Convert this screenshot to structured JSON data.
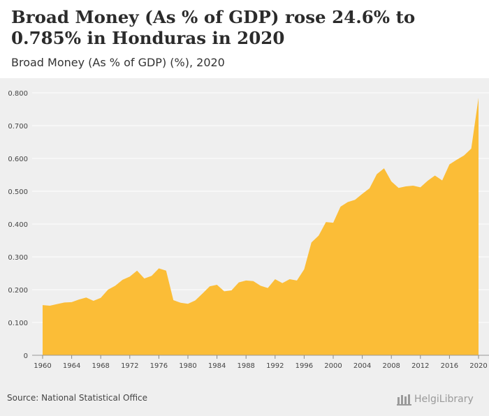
{
  "header": {
    "title": "Broad Money (As % of GDP) rose 24.6% to 0.785% in Honduras in 2020",
    "subtitle": "Broad Money (As % of GDP) (%), 2020"
  },
  "footer": {
    "source": "Source: National Statistical Office",
    "logo_text": "HelgiLibrary"
  },
  "colors": {
    "area_fill": "#fbbd37",
    "grid": "#ffffff",
    "background": "#efefef"
  },
  "chart_data": {
    "type": "area",
    "title": "Broad Money (As % of GDP) rose 24.6% to 0.785% in Honduras in 2020",
    "subtitle": "Broad Money (As % of GDP) (%), 2020",
    "xlabel": "",
    "ylabel": "",
    "xlim": [
      1960,
      2020
    ],
    "ylim": [
      0,
      0.8
    ],
    "grid": true,
    "x_ticks": [
      "1960",
      "1964",
      "1968",
      "1972",
      "1976",
      "1980",
      "1984",
      "1988",
      "1992",
      "1996",
      "2000",
      "2004",
      "2008",
      "2012",
      "2016",
      "2020"
    ],
    "y_ticks": [
      "0",
      "0.100",
      "0.200",
      "0.300",
      "0.400",
      "0.500",
      "0.600",
      "0.700",
      "0.800"
    ],
    "x": [
      1960,
      1961,
      1962,
      1963,
      1964,
      1965,
      1966,
      1967,
      1968,
      1969,
      1970,
      1971,
      1972,
      1973,
      1974,
      1975,
      1976,
      1977,
      1978,
      1979,
      1980,
      1981,
      1982,
      1983,
      1984,
      1985,
      1986,
      1987,
      1988,
      1989,
      1990,
      1991,
      1992,
      1993,
      1994,
      1995,
      1996,
      1997,
      1998,
      1999,
      2000,
      2001,
      2002,
      2003,
      2004,
      2005,
      2006,
      2007,
      2008,
      2009,
      2010,
      2011,
      2012,
      2013,
      2014,
      2015,
      2016,
      2017,
      2018,
      2019,
      2020
    ],
    "series": [
      {
        "values": [
          0.153,
          0.151,
          0.156,
          0.161,
          0.162,
          0.17,
          0.176,
          0.166,
          0.175,
          0.2,
          0.212,
          0.23,
          0.24,
          0.258,
          0.234,
          0.242,
          0.265,
          0.258,
          0.168,
          0.16,
          0.157,
          0.167,
          0.188,
          0.21,
          0.215,
          0.195,
          0.198,
          0.222,
          0.228,
          0.226,
          0.212,
          0.205,
          0.232,
          0.22,
          0.232,
          0.228,
          0.262,
          0.344,
          0.365,
          0.406,
          0.404,
          0.453,
          0.467,
          0.474,
          0.492,
          0.509,
          0.552,
          0.57,
          0.53,
          0.51,
          0.515,
          0.517,
          0.512,
          0.532,
          0.548,
          0.533,
          0.582,
          0.596,
          0.609,
          0.63,
          0.785
        ]
      }
    ]
  }
}
